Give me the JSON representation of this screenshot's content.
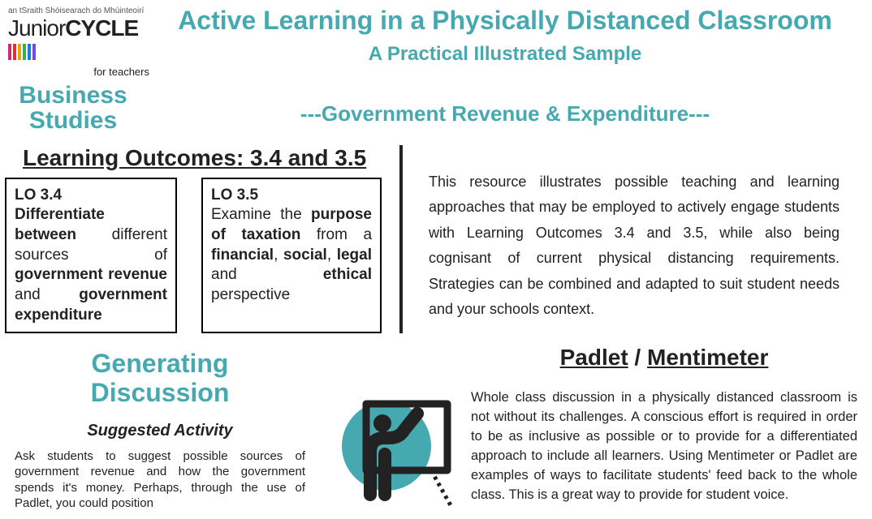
{
  "logo": {
    "toptext": "an tSraith Shóisearach do Mhúinteoirí",
    "junior": "Junior",
    "cycle": "CYCLE",
    "forteachers": "for teachers",
    "bar_colors": [
      "#c92a7a",
      "#e03131",
      "#f59f00",
      "#37b24d",
      "#1c7ed6",
      "#7048e8"
    ]
  },
  "subject": "Business Studies",
  "title": {
    "main": "Active Learning in a Physically Distanced  Classroom",
    "sub": "A Practical Illustrated Sample",
    "topic": "---Government Revenue & Expenditure---"
  },
  "lo_heading": "Learning Outcomes: 3.4 and 3.5",
  "lo34": {
    "num": "LO 3.4",
    "html": "<b>Differentiate between</b> different sources of <b>government revenue</b> and <b>government expenditure</b>"
  },
  "lo35": {
    "num": "LO 3.5",
    "html": "Examine the <b>purpose of taxation</b> from a <b>financial</b>, <b>social</b>, <b>legal</b> and <b>ethical</b> perspective"
  },
  "intro": "This resource illustrates possible teaching and learning approaches that may be employed to actively engage students with Learning Outcomes 3.4 and 3.5, while also being cognisant of current physical distancing requirements. Strategies can be combined and adapted to suit student needs and your schools context.",
  "generating": {
    "title_line1": "Generating",
    "title_line2": "Discussion",
    "suggested": "Suggested Activity",
    "body": "Ask students to suggest possible sources of government revenue and how the government spends it's money. Perhaps, through the use of Padlet, you could position"
  },
  "padlet": {
    "title_a": "Padlet",
    "title_sep": " / ",
    "title_b": "Mentimeter",
    "body": "Whole class discussion in a physically distanced classroom is not without its challenges. A conscious effort is required in order to be as inclusive as possible or to provide for a differentiated approach to include all learners. Using Mentimeter or Padlet are examples of ways to facilitate students' feed back to the whole class. This is a great way to provide for student voice."
  },
  "colors": {
    "accent": "#46a9b0",
    "icon_circle": "#46a9b0",
    "icon_dark": "#222222"
  }
}
